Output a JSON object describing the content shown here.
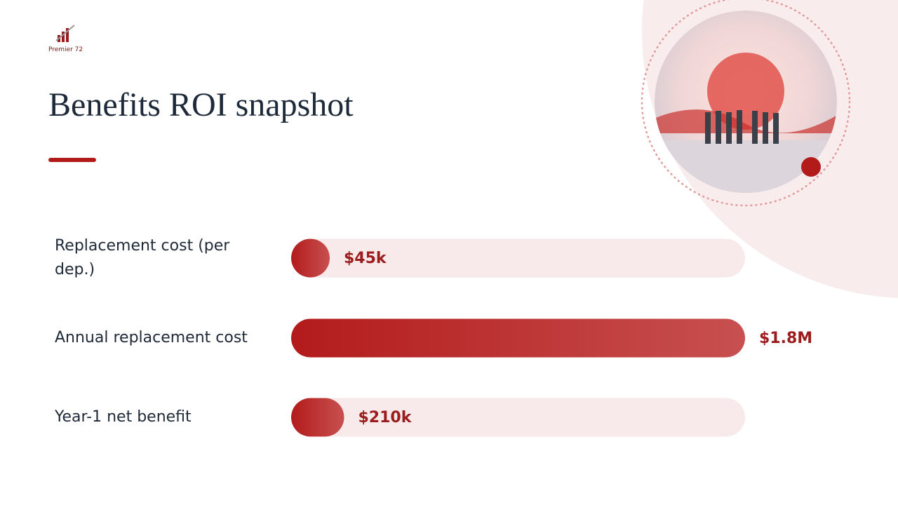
{
  "header": {
    "logo_text": "Premier 72",
    "title": "Benefits ROI snapshot"
  },
  "chart_data": {
    "type": "bar",
    "orientation": "horizontal",
    "categories": [
      "Replacement cost (per dep.)",
      "Annual replacement cost",
      "Year-1 net benefit"
    ],
    "values": [
      45000,
      1800000,
      210000
    ],
    "value_labels": [
      "$45k",
      "$1.8M",
      "$210k"
    ],
    "xlim": [
      0,
      1800000
    ],
    "color": "#b31b1b"
  }
}
